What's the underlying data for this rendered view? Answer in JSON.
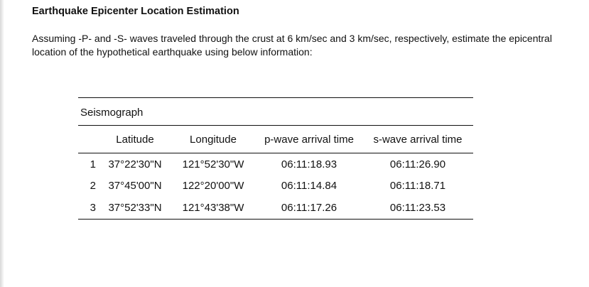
{
  "document": {
    "title": "Earthquake Epicenter Location Estimation",
    "paragraph": "Assuming -P- and -S- waves traveled through the crust at 6 km/sec and 3 km/sec, respectively, estimate the epicentral location of the hypothetical earthquake using below information:"
  },
  "table": {
    "caption": "Seismograph",
    "headers": [
      "",
      "Latitude",
      "Longitude",
      "p-wave arrival time",
      "s-wave arrival time"
    ],
    "rows": [
      [
        "1",
        "37°22'30\"N",
        "121°52'30\"W",
        "06:11:18.93",
        "06:11:26.90"
      ],
      [
        "2",
        "37°45'00\"N",
        "122°20'00\"W",
        "06:11:14.84",
        "06:11:18.71"
      ],
      [
        "3",
        "37°52'33\"N",
        "121°43'38\"W",
        "06:11:17.26",
        "06:11:23.53"
      ]
    ]
  }
}
